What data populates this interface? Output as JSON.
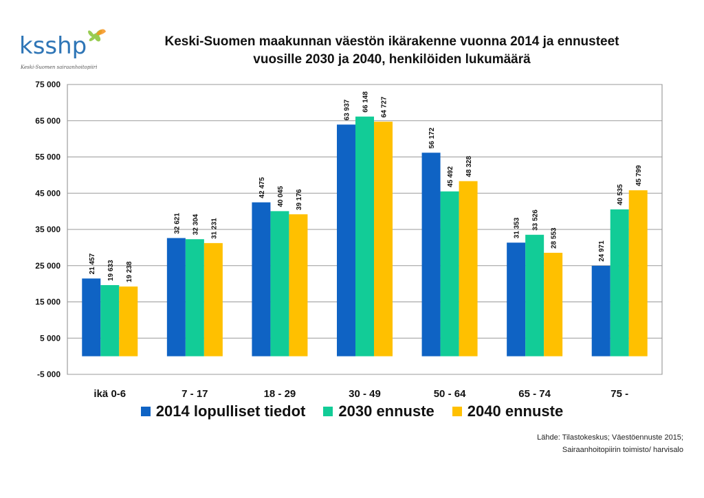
{
  "logo": {
    "text": "ksshp",
    "tagline": "Keski-Suomen sairaanhoitopiiri"
  },
  "title_line1": "Keski-Suomen maakunnan väestön ikärakenne vuonna 2014 ja ennusteet",
  "title_line2": "vuosille 2030 ja 2040, henkilöiden lukumäärä",
  "source_line1": "Lähde: Tilastokeskus; Väestöennuste 2015;",
  "source_line2": "Sairaanhoitopiirin toimisto/ harvisalo",
  "chart_data": {
    "type": "bar",
    "title": "Keski-Suomen maakunnan väestön ikärakenne vuonna 2014 ja ennusteet vuosille 2030 ja 2040, henkilöiden lukumäärä",
    "categories": [
      "ikä 0-6",
      "7 - 17",
      "18 - 29",
      "30 - 49",
      "50 - 64",
      "65 - 74",
      "75 -"
    ],
    "series": [
      {
        "name": "2014 lopulliset tiedot",
        "color": "#0F63C4",
        "values": [
          21457,
          32621,
          42475,
          63937,
          56172,
          31353,
          24971
        ],
        "labels": [
          "21 457",
          "32 621",
          "42 475",
          "63 937",
          "56 172",
          "31 353",
          "24 971"
        ]
      },
      {
        "name": "2030 ennuste",
        "color": "#12CC97",
        "values": [
          19633,
          32304,
          40045,
          66148,
          45492,
          33526,
          40535
        ],
        "labels": [
          "19 633",
          "32 304",
          "40 045",
          "66 148",
          "45 492",
          "33 526",
          "40 535"
        ]
      },
      {
        "name": "2040 ennuste",
        "color": "#FFC000",
        "values": [
          19238,
          31231,
          39176,
          64727,
          48328,
          28553,
          45799
        ],
        "labels": [
          "19 238",
          "31 231",
          "39 176",
          "64 727",
          "48 328",
          "28 553",
          "45 799"
        ]
      }
    ],
    "yticks": [
      -5000,
      5000,
      15000,
      25000,
      35000,
      45000,
      55000,
      65000,
      75000
    ],
    "ytick_labels": [
      "-5 000",
      "5 000",
      "15 000",
      "25 000",
      "35 000",
      "45 000",
      "55 000",
      "65 000",
      "75 000"
    ],
    "ylim": [
      -5000,
      75000
    ],
    "grid": true,
    "legend_position": "bottom"
  }
}
